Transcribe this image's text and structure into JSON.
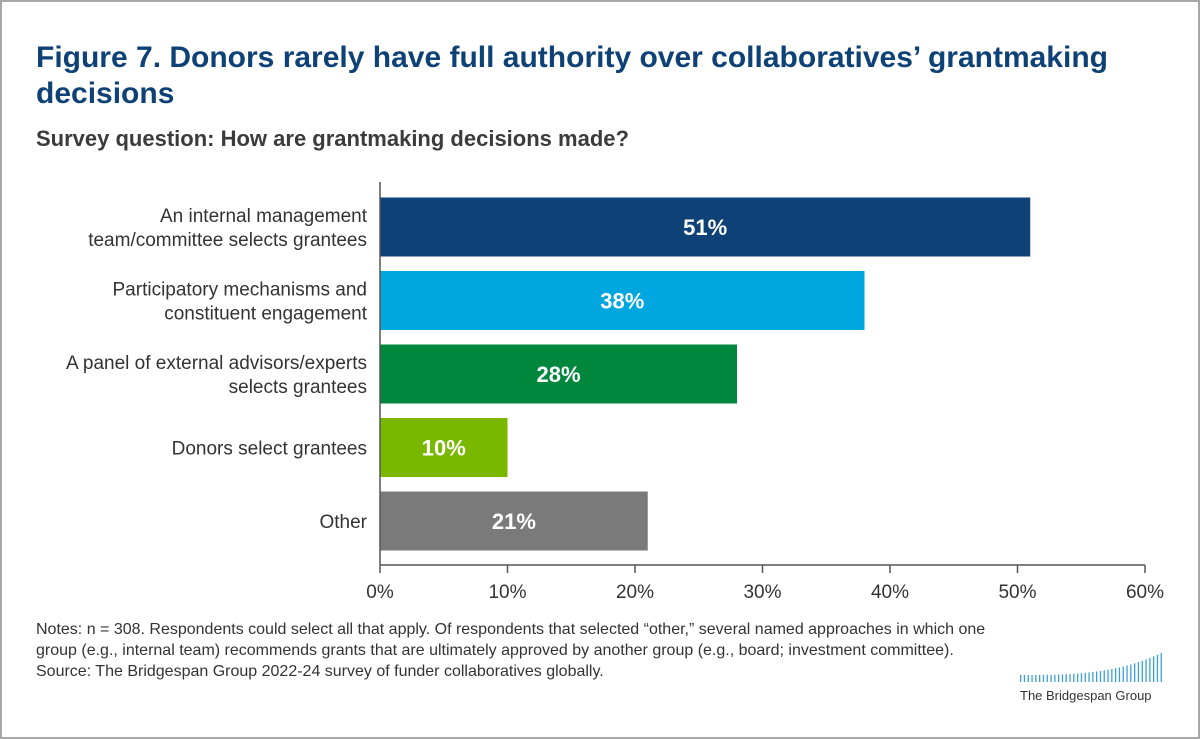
{
  "title": "Figure 7. Donors rarely have full authority over collaboratives’ grantmaking decisions",
  "subtitle": "Survey question: How are grantmaking decisions made?",
  "notes": "Notes: n = 308. Respondents could select all that apply. Of respondents that selected “other,” several named approaches in which one group (e.g., internal team) recommends grants that are ultimately approved by another group (e.g., board; investment committee).",
  "source": "Source: The Bridgespan Group 2022-24 survey of funder collaboratives globally.",
  "logo_text": "The Bridgespan Group",
  "chart_data": {
    "type": "bar",
    "orientation": "horizontal",
    "categories": [
      [
        "An internal management",
        "team/committee selects grantees"
      ],
      [
        "Participatory mechanisms and",
        "constituent engagement"
      ],
      [
        "A panel of external advisors/experts",
        "selects grantees"
      ],
      [
        "Donors select grantees"
      ],
      [
        "Other"
      ]
    ],
    "values": [
      51,
      38,
      28,
      10,
      21
    ],
    "data_labels": [
      "51%",
      "38%",
      "28%",
      "10%",
      "21%"
    ],
    "colors": [
      "#0e4277",
      "#00a6df",
      "#00873e",
      "#7ab800",
      "#7a7a7a"
    ],
    "xlim": [
      0,
      60
    ],
    "xticks": [
      0,
      10,
      20,
      30,
      40,
      50,
      60
    ],
    "xtick_labels": [
      "0%",
      "10%",
      "20%",
      "30%",
      "40%",
      "50%",
      "60%"
    ],
    "grid": false,
    "legend": "none"
  }
}
